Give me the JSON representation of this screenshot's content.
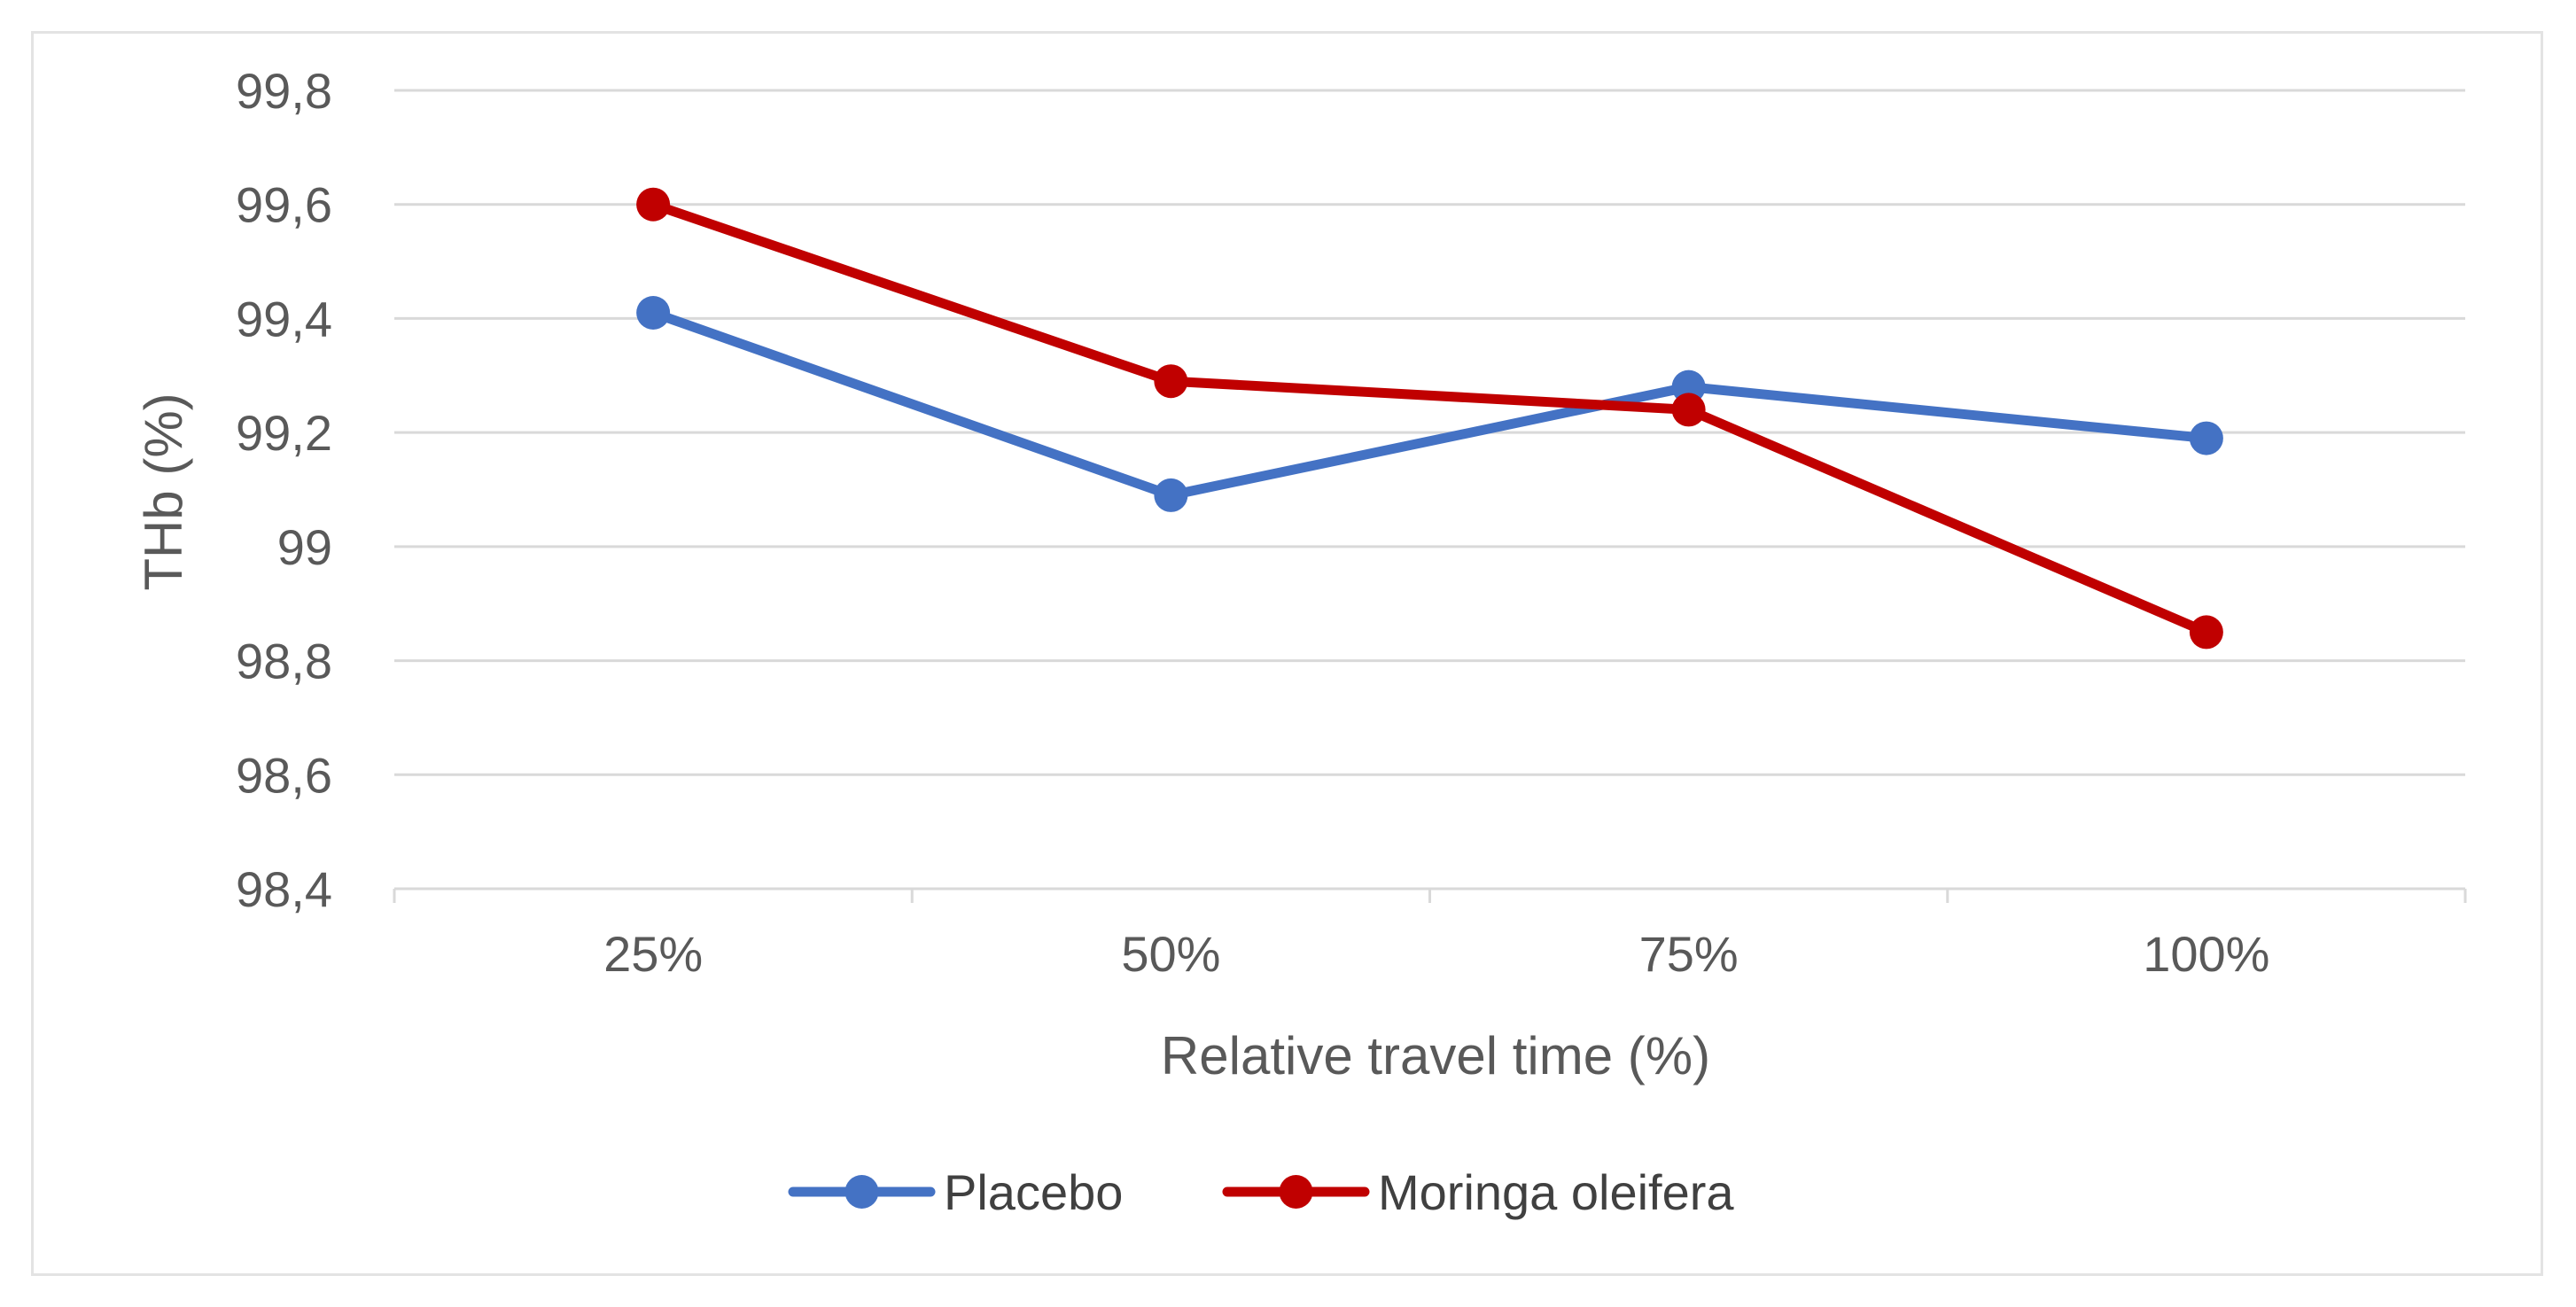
{
  "chart_data": {
    "type": "line",
    "title": "",
    "xlabel": "Relative travel time (%)",
    "ylabel": "THb (%)",
    "categories": [
      "25%",
      "50%",
      "75%",
      "100%"
    ],
    "ylim": [
      98.4,
      99.8
    ],
    "yticks": [
      "99,8",
      "99,6",
      "99,4",
      "99,2",
      "99",
      "98,8",
      "98,6",
      "98,4"
    ],
    "ytick_values": [
      99.8,
      99.6,
      99.4,
      99.2,
      99.0,
      98.8,
      98.6,
      98.4
    ],
    "grid": true,
    "legend_position": "bottom",
    "series": [
      {
        "name": "Placebo",
        "color": "#4472C4",
        "values": [
          99.41,
          99.09,
          99.28,
          99.19
        ]
      },
      {
        "name": "Moringa oleifera",
        "color": "#C00000",
        "values": [
          99.6,
          99.29,
          99.24,
          98.85
        ]
      }
    ]
  }
}
